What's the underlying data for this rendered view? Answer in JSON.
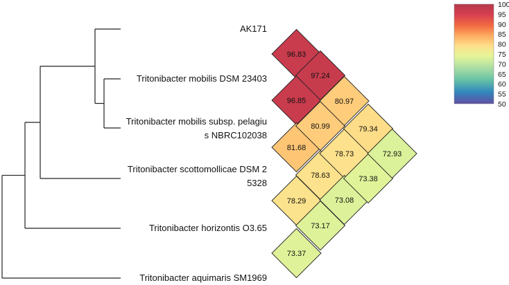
{
  "chart_data": {
    "type": "heatmap",
    "title": "",
    "subtitle": "",
    "taxa": [
      [
        "AK171"
      ],
      [
        "Tritonibacter mobilis DSM 23403"
      ],
      [
        "Tritonibacter mobilis subsp. pelagiu",
        "s NBRC102038"
      ],
      [
        "Tritonibacter scottomollicae DSM 2",
        "5328"
      ],
      [
        "Tritonibacter horizontis O3.65"
      ],
      [
        "Tritonibacter aquimaris SM1969"
      ]
    ],
    "cells": [
      {
        "i": 0,
        "j": 1,
        "value": 96.83,
        "label": "96.83"
      },
      {
        "i": 1,
        "j": 2,
        "value": 96.85,
        "label": "96.85"
      },
      {
        "i": 0,
        "j": 2,
        "value": 97.24,
        "label": "97.24"
      },
      {
        "i": 2,
        "j": 3,
        "value": 81.68,
        "label": "81.68"
      },
      {
        "i": 1,
        "j": 3,
        "value": 80.99,
        "label": "80.99"
      },
      {
        "i": 0,
        "j": 3,
        "value": 80.97,
        "label": "80.97"
      },
      {
        "i": 3,
        "j": 4,
        "value": 78.29,
        "label": "78.29"
      },
      {
        "i": 2,
        "j": 4,
        "value": 78.63,
        "label": "78.63"
      },
      {
        "i": 1,
        "j": 4,
        "value": 78.73,
        "label": "78.73"
      },
      {
        "i": 0,
        "j": 4,
        "value": 79.34,
        "label": "79.34"
      },
      {
        "i": 4,
        "j": 5,
        "value": 73.37,
        "label": "73.37"
      },
      {
        "i": 3,
        "j": 5,
        "value": 73.17,
        "label": "73.17"
      },
      {
        "i": 2,
        "j": 5,
        "value": 73.08,
        "label": "73.08"
      },
      {
        "i": 1,
        "j": 5,
        "value": 73.38,
        "label": "73.38"
      },
      {
        "i": 0,
        "j": 5,
        "value": 72.93,
        "label": "72.93"
      }
    ],
    "colorbar": {
      "range": [
        50,
        100
      ],
      "ticks": [
        "100",
        "95",
        "90",
        "85",
        "80",
        "75",
        "70",
        "65",
        "60",
        "55",
        "50"
      ],
      "palette": "spectral",
      "stops": [
        {
          "value": 50,
          "color": "#5e4fa2"
        },
        {
          "value": 56,
          "color": "#3288bd"
        },
        {
          "value": 62,
          "color": "#66c2a5"
        },
        {
          "value": 68,
          "color": "#abdda4"
        },
        {
          "value": 74,
          "color": "#e6f598"
        },
        {
          "value": 79,
          "color": "#fee08b"
        },
        {
          "value": 84,
          "color": "#fdae61"
        },
        {
          "value": 89,
          "color": "#f46d43"
        },
        {
          "value": 95,
          "color": "#d53e4f"
        },
        {
          "value": 100,
          "color": "#b5394a"
        }
      ],
      "placement": "top-right"
    },
    "dendrogram": {
      "leaf_order": [
        0,
        1,
        2,
        3,
        4,
        5
      ],
      "merges": [
        {
          "id": "n6",
          "children": [
            "L1",
            "L2"
          ]
        },
        {
          "id": "n7",
          "children": [
            "L0",
            "n6"
          ]
        },
        {
          "id": "n8",
          "children": [
            "n7",
            "L3"
          ]
        },
        {
          "id": "n9",
          "children": [
            "n8",
            "L4"
          ]
        },
        {
          "id": "n10",
          "children": [
            "n9",
            "L5"
          ]
        }
      ]
    }
  }
}
